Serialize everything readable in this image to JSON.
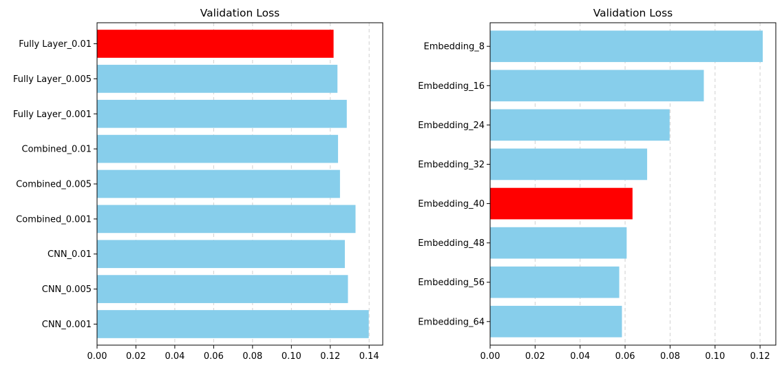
{
  "chart_data": [
    {
      "type": "bar",
      "orientation": "horizontal",
      "title": "Validation Loss",
      "xlabel": "",
      "ylabel": "",
      "xlim": [
        0,
        0.147
      ],
      "xticks": [
        0.0,
        0.02,
        0.04,
        0.06,
        0.08,
        0.1,
        0.12,
        0.14
      ],
      "xtick_labels": [
        "0.00",
        "0.02",
        "0.04",
        "0.06",
        "0.08",
        "0.10",
        "0.12",
        "0.14"
      ],
      "grid": "vertical dashed",
      "categories": [
        "Fully Layer_0.01",
        "Fully Layer_0.005",
        "Fully Layer_0.001",
        "Combined_0.01",
        "Combined_0.005",
        "Combined_0.001",
        "CNN_0.01",
        "CNN_0.005",
        "CNN_0.001"
      ],
      "values": [
        0.1217,
        0.1237,
        0.1285,
        0.124,
        0.125,
        0.133,
        0.1275,
        0.1291,
        0.1398
      ],
      "colors": [
        "#ff0000",
        "#87ceeb",
        "#87ceeb",
        "#87ceeb",
        "#87ceeb",
        "#87ceeb",
        "#87ceeb",
        "#87ceeb",
        "#87ceeb"
      ],
      "highlight_color": "#ff0000",
      "bar_color": "#87ceeb"
    },
    {
      "type": "bar",
      "orientation": "horizontal",
      "title": "Validation Loss",
      "xlabel": "",
      "ylabel": "",
      "xlim": [
        0,
        0.127
      ],
      "xticks": [
        0.0,
        0.02,
        0.04,
        0.06,
        0.08,
        0.1,
        0.12
      ],
      "xtick_labels": [
        "0.00",
        "0.02",
        "0.04",
        "0.06",
        "0.08",
        "0.10",
        "0.12"
      ],
      "grid": "vertical dashed",
      "categories": [
        "Embedding_8",
        "Embedding_16",
        "Embedding_24",
        "Embedding_32",
        "Embedding_40",
        "Embedding_48",
        "Embedding_56",
        "Embedding_64"
      ],
      "values": [
        0.1212,
        0.095,
        0.0798,
        0.0698,
        0.0633,
        0.0607,
        0.0574,
        0.0586
      ],
      "colors": [
        "#87ceeb",
        "#87ceeb",
        "#87ceeb",
        "#87ceeb",
        "#ff0000",
        "#87ceeb",
        "#87ceeb",
        "#87ceeb"
      ],
      "highlight_color": "#ff0000",
      "bar_color": "#87ceeb"
    }
  ]
}
